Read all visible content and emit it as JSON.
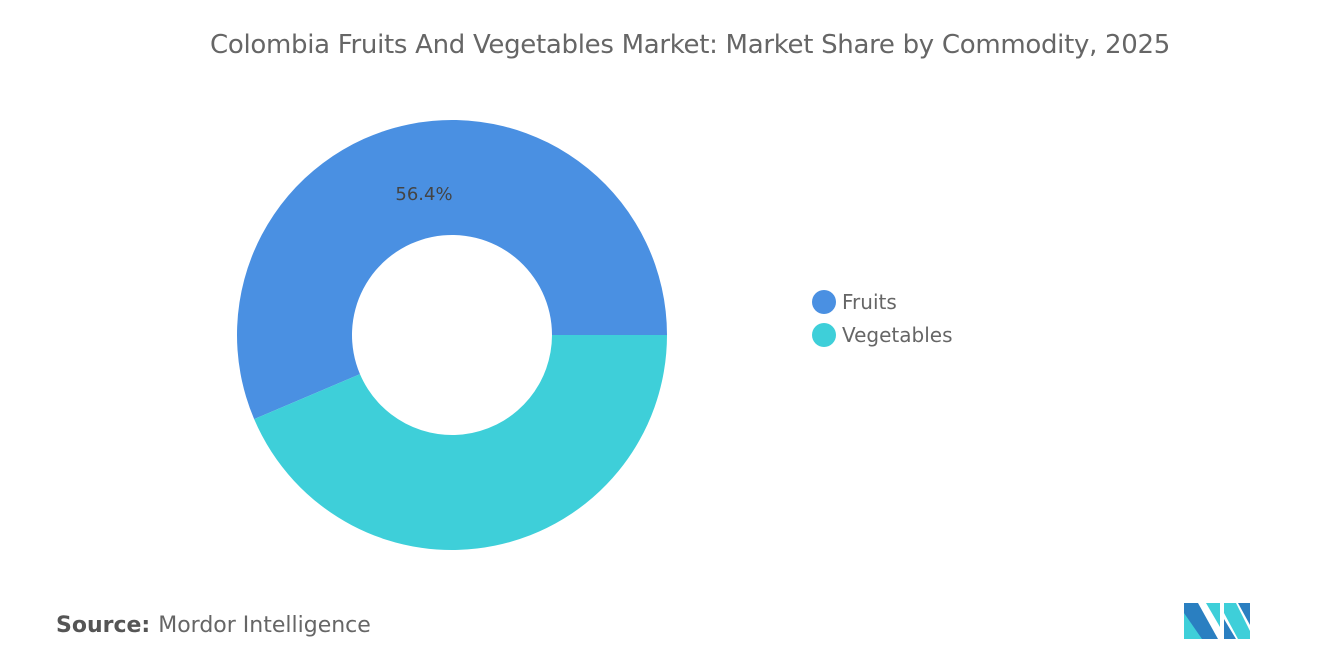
{
  "chart_data": {
    "type": "pie",
    "subtype": "donut",
    "title": "Colombia Fruits And Vegetables Market: Market Share by Commodity, 2025",
    "categories": [
      "Fruits",
      "Vegetables"
    ],
    "values": [
      56.4,
      43.6
    ],
    "unit": "%",
    "data_labels": [
      "56.4%",
      ""
    ],
    "colors": [
      "#4a90e2",
      "#3ecfd9"
    ],
    "legend_position": "right"
  },
  "source": {
    "label": "Source:",
    "value": "Mordor Intelligence"
  },
  "logo": {
    "name": "mordor-intelligence-logo",
    "colors": [
      "#2a7fc1",
      "#3ecfd9"
    ]
  }
}
